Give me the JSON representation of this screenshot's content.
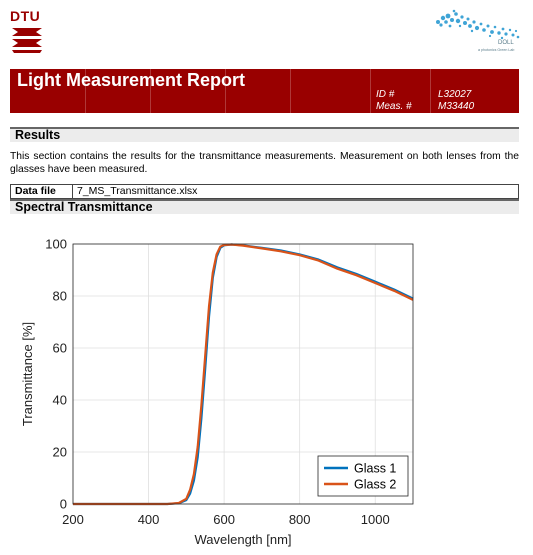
{
  "header": {
    "logo_text": "DTU",
    "partner_logo": {
      "name": "DOLL",
      "tagline": "a photonics Green Lab"
    }
  },
  "report": {
    "title": "Light Measurement Report",
    "id_label": "ID #",
    "id_value": "L32027",
    "meas_label": "Meas. #",
    "meas_value": "M33440"
  },
  "results": {
    "heading": "Results",
    "description": "This section contains the results for the transmittance measurements. Measurement on both lenses from the glasses have been measured.",
    "data_file_label": "Data file",
    "data_file_value": "7_MS_Transmittance.xlsx"
  },
  "spectral": {
    "heading": "Spectral Transmittance"
  },
  "colors": {
    "brand": "#990000",
    "series1": "#0072BD",
    "series2": "#D95319"
  },
  "chart_data": {
    "type": "line",
    "xlabel": "Wavelength [nm]",
    "ylabel": "Transmittance [%]",
    "xlim": [
      200,
      1100
    ],
    "ylim": [
      0,
      100
    ],
    "xticks": [
      200,
      400,
      600,
      800,
      1000
    ],
    "yticks": [
      0,
      20,
      40,
      60,
      80,
      100
    ],
    "grid": true,
    "legend_position": "bottom-right",
    "series": [
      {
        "name": "Glass 1",
        "color": "#0072BD",
        "x": [
          200,
          300,
          400,
          450,
          480,
          500,
          510,
          520,
          530,
          540,
          550,
          560,
          570,
          580,
          590,
          600,
          620,
          650,
          700,
          750,
          800,
          850,
          900,
          950,
          1000,
          1050,
          1100
        ],
        "y": [
          0,
          0,
          0,
          0,
          0.3,
          1.5,
          4,
          9,
          18,
          33,
          52,
          72,
          87,
          95,
          98.5,
          99.5,
          99.8,
          99.5,
          98.5,
          97.5,
          96,
          94,
          91,
          88.5,
          85.5,
          82.5,
          79
        ]
      },
      {
        "name": "Glass 2",
        "color": "#D95319",
        "x": [
          200,
          300,
          400,
          450,
          480,
          500,
          510,
          520,
          530,
          540,
          550,
          560,
          570,
          580,
          590,
          600,
          620,
          650,
          700,
          750,
          800,
          850,
          900,
          950,
          1000,
          1050,
          1100
        ],
        "y": [
          0,
          0,
          0,
          0,
          0.4,
          2,
          5.5,
          11.5,
          22,
          38,
          57,
          76,
          89,
          96,
          99,
          99.6,
          99.8,
          99.4,
          98.3,
          97.2,
          95.7,
          93.6,
          90.5,
          88,
          85,
          82,
          78.5
        ]
      }
    ]
  }
}
